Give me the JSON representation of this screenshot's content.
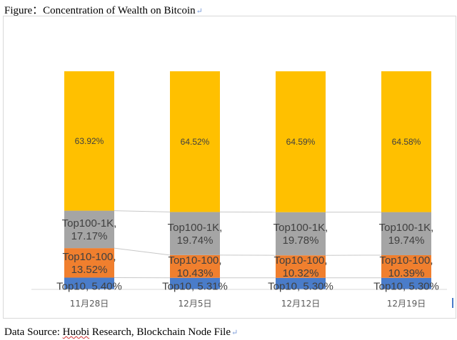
{
  "figure_title": "Figure：Concentration of Wealth on Bitcoin",
  "source": {
    "prefix": "Data Source: ",
    "brand": "Huobi",
    "rest": " Research, Blockchain Node File"
  },
  "return_mark": "↵",
  "colors": {
    "top10": "#4a7cc9",
    "top10_100": "#f07f2e",
    "top100_1k": "#a5a5a5",
    "rest": "#ffc000",
    "connector": "#c8c8c8",
    "axis": "#d9d9d9"
  },
  "chart_data": {
    "type": "bar",
    "stacked": true,
    "categories": [
      "11月28日",
      "12月5日",
      "12月12日",
      "12月19日"
    ],
    "series": [
      {
        "name": "Top10",
        "values": [
          5.4,
          5.31,
          5.3,
          5.3
        ]
      },
      {
        "name": "Top10-100",
        "values": [
          13.52,
          10.43,
          10.32,
          10.39
        ]
      },
      {
        "name": "Top100-1K",
        "values": [
          17.17,
          19.74,
          19.78,
          19.74
        ]
      },
      {
        "name": "",
        "values": [
          63.92,
          64.52,
          64.59,
          64.58
        ]
      }
    ],
    "labels": [
      [
        "Top10, 5.40%",
        "Top10, 5.31%",
        "Top10, 5.30%",
        "Top10, 5.30%"
      ],
      [
        "Top10-100,|13.52%",
        "Top10-100,|10.43%",
        "Top10-100,|10.32%",
        "Top10-100,|10.39%"
      ],
      [
        "Top100-1K,|17.17%",
        "Top100-1K,|19.74%",
        "Top100-1K,|19.78%",
        "Top100-1K,|19.74%"
      ],
      [
        "63.92%",
        "64.52%",
        "64.59%",
        "64.58%"
      ]
    ],
    "ylim": [
      0,
      100
    ],
    "title": "",
    "xlabel": "",
    "ylabel": ""
  }
}
